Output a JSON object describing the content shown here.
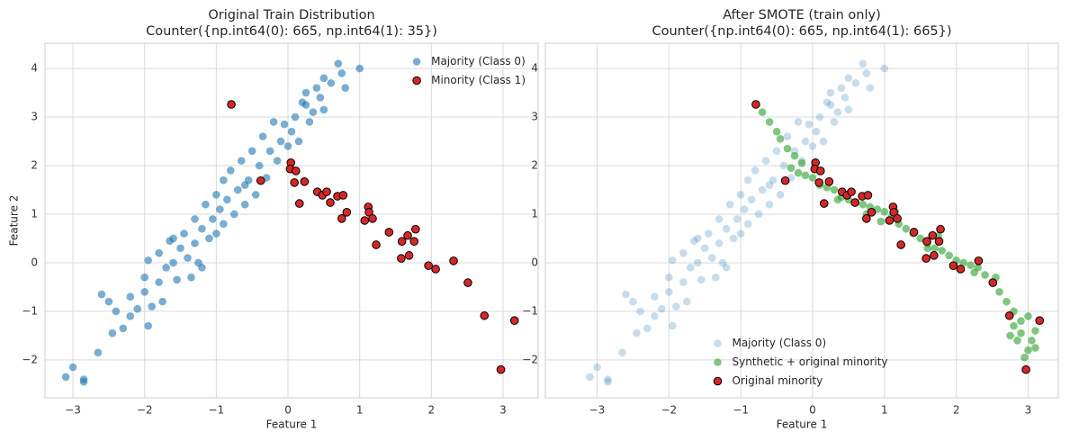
{
  "chart_data": [
    {
      "type": "scatter",
      "title": "Original Train Distribution",
      "subtitle": "Counter({np.int64(0): 665, np.int64(1): 35})",
      "xlabel": "Feature 1",
      "ylabel": "Feature 2",
      "grid": true,
      "legend": "upper right",
      "xlim": [
        -3.39,
        3.49
      ],
      "ylim": [
        -2.78,
        4.52
      ],
      "xticks": [
        {
          "value": -3,
          "label": "−3"
        },
        {
          "value": -2,
          "label": "−2"
        },
        {
          "value": -1,
          "label": "−1"
        },
        0,
        1,
        2,
        3
      ],
      "yticks": [
        {
          "value": -2,
          "label": "−2"
        },
        {
          "value": -1,
          "label": "−1"
        },
        0,
        1,
        2,
        3,
        4
      ],
      "series": [
        {
          "name": "Majority (Class 0)",
          "color": "#1f77b4",
          "alpha": 0.6,
          "x": [
            -3.1,
            -3.0,
            -2.85,
            -2.85,
            -2.65,
            -2.45,
            -2.5,
            -2.4,
            -2.3,
            -2.2,
            -2.2,
            -2.1,
            -2.0,
            -2.0,
            -1.95,
            -1.9,
            -1.8,
            -1.8,
            -1.75,
            -1.7,
            -1.6,
            -1.6,
            -1.55,
            -1.5,
            -1.45,
            -1.4,
            -1.35,
            -1.3,
            -1.3,
            -1.25,
            -1.2,
            -1.15,
            -1.1,
            -1.05,
            -1.0,
            -1.0,
            -0.95,
            -0.9,
            -0.9,
            -0.85,
            -0.8,
            -0.75,
            -0.7,
            -0.65,
            -0.6,
            -0.55,
            -0.5,
            -0.45,
            -0.4,
            -0.35,
            -0.3,
            -0.25,
            -0.2,
            -0.15,
            -0.1,
            -0.05,
            0.0,
            0.05,
            0.1,
            0.15,
            0.2,
            0.25,
            0.3,
            0.35,
            0.4,
            0.45,
            0.5,
            0.6,
            0.7,
            0.75,
            0.8,
            1.0,
            0.25,
            0.5,
            -0.6,
            -1.2,
            -1.65,
            -1.95,
            -2.6
          ],
          "y": [
            -2.35,
            -2.15,
            -2.45,
            -2.4,
            -1.85,
            -1.45,
            -0.8,
            -1.0,
            -1.35,
            -1.1,
            -0.7,
            -0.95,
            -0.3,
            -0.6,
            -1.3,
            -0.9,
            0.2,
            -0.4,
            -0.8,
            -0.1,
            0.5,
            0.0,
            -0.35,
            0.3,
            0.6,
            0.1,
            -0.3,
            0.9,
            0.4,
            0.0,
            0.7,
            1.2,
            0.5,
            0.9,
            1.4,
            0.6,
            1.1,
            1.7,
            0.8,
            1.3,
            1.9,
            1.0,
            1.5,
            2.1,
            1.2,
            1.7,
            2.3,
            1.4,
            2.0,
            2.6,
            1.75,
            2.3,
            2.9,
            2.1,
            2.5,
            2.85,
            2.4,
            2.7,
            3.0,
            2.5,
            3.3,
            3.5,
            2.9,
            3.1,
            3.6,
            3.4,
            3.8,
            3.7,
            4.1,
            3.9,
            3.6,
            4.0,
            3.25,
            3.15,
            1.6,
            -0.1,
            0.45,
            0.05,
            -0.65
          ]
        },
        {
          "name": "Minority (Class 1)",
          "color": "#d62728",
          "edgecolor": "#000000",
          "alpha": 1,
          "x": [
            -0.79,
            -0.38,
            0.04,
            0.03,
            0.11,
            0.09,
            0.23,
            0.16,
            0.41,
            0.48,
            0.54,
            0.59,
            0.69,
            0.77,
            0.82,
            0.75,
            1.12,
            1.13,
            1.07,
            1.18,
            1.23,
            1.41,
            1.59,
            1.67,
            1.76,
            1.78,
            1.58,
            1.69,
            1.96,
            2.06,
            2.31,
            2.51,
            2.74,
            3.16,
            2.97
          ],
          "y": [
            3.26,
            1.69,
            2.06,
            1.93,
            1.89,
            1.65,
            1.67,
            1.22,
            1.46,
            1.39,
            1.46,
            1.24,
            1.37,
            1.39,
            1.04,
            0.91,
            1.15,
            1.04,
            0.87,
            0.91,
            0.37,
            0.63,
            0.44,
            0.56,
            0.44,
            0.69,
            0.09,
            0.15,
            -0.06,
            -0.13,
            0.04,
            -0.41,
            -1.09,
            -1.19,
            -2.2
          ]
        }
      ]
    },
    {
      "type": "scatter",
      "title": "After SMOTE (train only)",
      "subtitle": "Counter({np.int64(0): 665, np.int64(1): 665})",
      "xlabel": "Feature 1",
      "grid": true,
      "legend": "lower center",
      "xlim": [
        -3.72,
        3.42
      ],
      "ylim": [
        -2.78,
        4.52
      ],
      "xticks": [
        {
          "value": -3,
          "label": "−3"
        },
        {
          "value": -2,
          "label": "−2"
        },
        {
          "value": -1,
          "label": "−1"
        },
        0,
        1,
        2,
        3
      ],
      "yticks": [
        {
          "value": -2,
          "label": "−2"
        },
        {
          "value": -1,
          "label": "−1"
        },
        0,
        1,
        2,
        3,
        4
      ],
      "series": [
        {
          "name": "Majority (Class 0)",
          "color": "#1f77b4",
          "alpha": 0.25,
          "x": [
            -3.1,
            -3.0,
            -2.85,
            -2.85,
            -2.65,
            -2.45,
            -2.5,
            -2.4,
            -2.3,
            -2.2,
            -2.2,
            -2.1,
            -2.0,
            -2.0,
            -1.95,
            -1.9,
            -1.8,
            -1.8,
            -1.75,
            -1.7,
            -1.6,
            -1.6,
            -1.55,
            -1.5,
            -1.45,
            -1.4,
            -1.35,
            -1.3,
            -1.3,
            -1.25,
            -1.2,
            -1.15,
            -1.1,
            -1.05,
            -1.0,
            -1.0,
            -0.95,
            -0.9,
            -0.9,
            -0.85,
            -0.8,
            -0.75,
            -0.7,
            -0.65,
            -0.6,
            -0.55,
            -0.5,
            -0.45,
            -0.4,
            -0.35,
            -0.3,
            -0.25,
            -0.2,
            -0.15,
            -0.1,
            -0.05,
            0.0,
            0.05,
            0.1,
            0.15,
            0.2,
            0.25,
            0.3,
            0.35,
            0.4,
            0.45,
            0.5,
            0.6,
            0.7,
            0.75,
            0.8,
            1.0,
            0.25,
            0.5,
            -0.6,
            -1.2,
            -1.65,
            -1.95,
            -2.6
          ],
          "y": [
            -2.35,
            -2.15,
            -2.45,
            -2.4,
            -1.85,
            -1.45,
            -0.8,
            -1.0,
            -1.35,
            -1.1,
            -0.7,
            -0.95,
            -0.3,
            -0.6,
            -1.3,
            -0.9,
            0.2,
            -0.4,
            -0.8,
            -0.1,
            0.5,
            0.0,
            -0.35,
            0.3,
            0.6,
            0.1,
            -0.3,
            0.9,
            0.4,
            0.0,
            0.7,
            1.2,
            0.5,
            0.9,
            1.4,
            0.6,
            1.1,
            1.7,
            0.8,
            1.3,
            1.9,
            1.0,
            1.5,
            2.1,
            1.2,
            1.7,
            2.3,
            1.4,
            2.0,
            2.6,
            1.75,
            2.3,
            2.9,
            2.1,
            2.5,
            2.85,
            2.4,
            2.7,
            3.0,
            2.5,
            3.3,
            3.5,
            2.9,
            3.1,
            3.6,
            3.4,
            3.8,
            3.7,
            4.1,
            3.9,
            3.6,
            4.0,
            3.25,
            3.15,
            1.6,
            -0.1,
            0.45,
            0.05,
            -0.65
          ]
        },
        {
          "name": "Synthetic + original minority",
          "color": "#2ca02c",
          "alpha": 0.6,
          "x": [
            -0.7,
            -0.6,
            -0.5,
            -0.45,
            -0.35,
            -0.25,
            -0.15,
            -0.3,
            -0.1,
            0.0,
            0.1,
            0.2,
            0.3,
            0.4,
            0.5,
            0.6,
            0.7,
            0.8,
            0.9,
            1.0,
            1.1,
            1.2,
            1.3,
            1.4,
            1.5,
            1.6,
            1.7,
            1.8,
            1.9,
            2.0,
            2.1,
            2.2,
            2.3,
            2.4,
            2.5,
            2.6,
            2.7,
            2.8,
            2.9,
            3.0,
            3.1,
            3.05,
            3.0,
            2.95,
            2.85,
            2.8,
            2.9,
            1.75,
            1.6,
            0.75,
            0.35,
            -0.2,
            1.15,
            0.95,
            2.25,
            2.55,
            3.1,
            2.75
          ],
          "y": [
            3.1,
            2.9,
            2.7,
            2.55,
            2.35,
            2.2,
            2.05,
            1.95,
            1.8,
            1.75,
            1.6,
            1.55,
            1.5,
            1.35,
            1.3,
            1.25,
            1.2,
            1.15,
            1.1,
            1.05,
            0.95,
            0.8,
            0.7,
            0.6,
            0.5,
            0.4,
            0.3,
            0.25,
            0.15,
            0.05,
            0.0,
            -0.05,
            -0.1,
            -0.25,
            -0.4,
            -0.6,
            -0.8,
            -1.0,
            -1.2,
            -1.1,
            -1.4,
            -1.6,
            -1.8,
            -1.95,
            -1.6,
            -1.3,
            -1.45,
            0.55,
            0.3,
            1.0,
            1.3,
            1.85,
            1.05,
            0.85,
            -0.2,
            -0.3,
            -1.75,
            -1.5
          ]
        },
        {
          "name": "Original minority",
          "color": "#d62728",
          "edgecolor": "#000000",
          "alpha": 1,
          "x": [
            -0.79,
            -0.38,
            0.04,
            0.03,
            0.11,
            0.09,
            0.23,
            0.16,
            0.41,
            0.48,
            0.54,
            0.59,
            0.69,
            0.77,
            0.82,
            0.75,
            1.12,
            1.13,
            1.07,
            1.18,
            1.23,
            1.41,
            1.59,
            1.67,
            1.76,
            1.78,
            1.58,
            1.69,
            1.96,
            2.06,
            2.31,
            2.51,
            2.74,
            3.16,
            2.97
          ],
          "y": [
            3.26,
            1.69,
            2.06,
            1.93,
            1.89,
            1.65,
            1.67,
            1.22,
            1.46,
            1.39,
            1.46,
            1.24,
            1.37,
            1.39,
            1.04,
            0.91,
            1.15,
            1.04,
            0.87,
            0.91,
            0.37,
            0.63,
            0.44,
            0.56,
            0.44,
            0.69,
            0.09,
            0.15,
            -0.06,
            -0.13,
            0.04,
            -0.41,
            -1.09,
            -1.19,
            -2.2
          ]
        }
      ]
    }
  ]
}
